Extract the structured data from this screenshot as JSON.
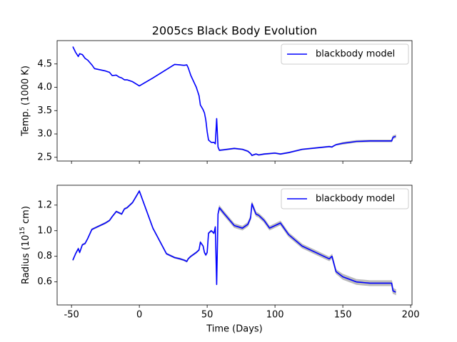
{
  "chart_data": [
    {
      "type": "line",
      "title": "2005cs Black Body Evolution",
      "ylabel": "Temp. (1000 K)",
      "x": [
        -49,
        -47,
        -45,
        -44,
        -42,
        -40,
        -38,
        -35,
        -33,
        -25,
        -22,
        -20,
        -17,
        -15,
        -13,
        -11,
        -9,
        -5,
        0,
        10,
        20,
        26,
        30,
        33,
        35,
        36,
        38,
        42,
        44,
        45,
        47,
        48,
        49,
        50,
        51,
        53,
        55,
        56,
        57,
        58,
        59,
        62,
        70,
        76,
        80,
        82,
        83,
        86,
        88,
        92,
        96,
        100,
        104,
        110,
        120,
        130,
        140,
        142,
        143,
        145,
        150,
        160,
        170,
        186,
        187,
        189
      ],
      "series": [
        {
          "name": "blackbody model",
          "color": "#0000ff",
          "band_color": "#bbbbbb",
          "values": [
            4.87,
            4.75,
            4.66,
            4.72,
            4.7,
            4.62,
            4.58,
            4.48,
            4.4,
            4.35,
            4.32,
            4.25,
            4.26,
            4.22,
            4.2,
            4.16,
            4.16,
            4.12,
            4.03,
            4.2,
            4.38,
            4.49,
            4.48,
            4.47,
            4.48,
            4.42,
            4.25,
            4.0,
            3.82,
            3.62,
            3.52,
            3.45,
            3.3,
            3.05,
            2.87,
            2.82,
            2.82,
            2.79,
            3.33,
            2.72,
            2.65,
            2.66,
            2.69,
            2.67,
            2.63,
            2.58,
            2.54,
            2.57,
            2.55,
            2.57,
            2.58,
            2.59,
            2.57,
            2.6,
            2.67,
            2.7,
            2.73,
            2.72,
            2.74,
            2.77,
            2.8,
            2.84,
            2.85,
            2.85,
            2.93,
            2.95
          ],
          "errors": [
            0.005,
            0.005,
            0.005,
            0.005,
            0.005,
            0.005,
            0.005,
            0.005,
            0.005,
            0.005,
            0.005,
            0.005,
            0.005,
            0.005,
            0.005,
            0.005,
            0.005,
            0.005,
            0.005,
            0.005,
            0.005,
            0.005,
            0.005,
            0.005,
            0.005,
            0.005,
            0.005,
            0.005,
            0.005,
            0.005,
            0.005,
            0.005,
            0.005,
            0.005,
            0.005,
            0.005,
            0.005,
            0.005,
            0.005,
            0.005,
            0.01,
            0.01,
            0.01,
            0.01,
            0.01,
            0.01,
            0.01,
            0.01,
            0.01,
            0.01,
            0.01,
            0.01,
            0.01,
            0.01,
            0.01,
            0.01,
            0.01,
            0.01,
            0.01,
            0.01,
            0.02,
            0.02,
            0.02,
            0.02,
            0.03,
            0.03
          ]
        }
      ],
      "xlim": [
        -60.6,
        201
      ],
      "xticks": [
        -50,
        0,
        50,
        100,
        150,
        200
      ],
      "show_xticklabels": false,
      "ylim": [
        2.42,
        5.0
      ],
      "yticks": [
        2.5,
        {
          "value": 3.0,
          "label": "3.0"
        },
        3.5,
        {
          "value": 4.0,
          "label": "4.0"
        },
        4.5
      ],
      "legend": "upper right"
    },
    {
      "type": "line",
      "xlabel": "Time (Days)",
      "ylabel_parts": [
        "Radius (10",
        "15",
        " cm)"
      ],
      "x": [
        -49,
        -47,
        -45,
        -44,
        -42,
        -40,
        -38,
        -35,
        -33,
        -25,
        -22,
        -20,
        -17,
        -15,
        -13,
        -11,
        -9,
        -5,
        0,
        10,
        20,
        26,
        30,
        33,
        35,
        36,
        38,
        42,
        44,
        45,
        47,
        48,
        49,
        50,
        51,
        53,
        55,
        56,
        57,
        58,
        59,
        62,
        70,
        76,
        80,
        82,
        83,
        86,
        88,
        92,
        96,
        100,
        104,
        110,
        120,
        130,
        140,
        142,
        143,
        145,
        150,
        160,
        170,
        186,
        187,
        189
      ],
      "series": [
        {
          "name": "blackbody model",
          "color": "#0000ff",
          "band_color": "#bbbbbb",
          "values": [
            0.77,
            0.82,
            0.86,
            0.83,
            0.89,
            0.9,
            0.94,
            1.01,
            1.02,
            1.06,
            1.08,
            1.11,
            1.15,
            1.14,
            1.13,
            1.17,
            1.18,
            1.22,
            1.31,
            1.02,
            0.82,
            0.79,
            0.78,
            0.77,
            0.76,
            0.78,
            0.8,
            0.83,
            0.85,
            0.91,
            0.88,
            0.83,
            0.81,
            0.83,
            0.98,
            1.0,
            0.98,
            1.03,
            0.58,
            1.13,
            1.18,
            1.14,
            1.04,
            1.02,
            1.05,
            1.1,
            1.21,
            1.13,
            1.12,
            1.08,
            1.02,
            1.04,
            1.06,
            0.97,
            0.88,
            0.83,
            0.78,
            0.8,
            0.76,
            0.68,
            0.64,
            0.6,
            0.59,
            0.59,
            0.53,
            0.52
          ],
          "errors": [
            0.005,
            0.005,
            0.005,
            0.005,
            0.005,
            0.005,
            0.005,
            0.005,
            0.005,
            0.005,
            0.005,
            0.005,
            0.005,
            0.005,
            0.005,
            0.005,
            0.005,
            0.005,
            0.005,
            0.005,
            0.005,
            0.005,
            0.005,
            0.005,
            0.005,
            0.005,
            0.005,
            0.005,
            0.005,
            0.005,
            0.005,
            0.005,
            0.005,
            0.005,
            0.005,
            0.005,
            0.005,
            0.005,
            0.005,
            0.005,
            0.015,
            0.015,
            0.015,
            0.015,
            0.015,
            0.015,
            0.015,
            0.015,
            0.015,
            0.015,
            0.015,
            0.015,
            0.015,
            0.015,
            0.015,
            0.015,
            0.015,
            0.015,
            0.015,
            0.015,
            0.02,
            0.02,
            0.02,
            0.02,
            0.02,
            0.02
          ]
        }
      ],
      "xlim": [
        -60.6,
        201
      ],
      "xticks": [
        -50,
        0,
        50,
        100,
        150,
        200
      ],
      "show_xticklabels": true,
      "ylim": [
        0.42,
        1.355
      ],
      "yticks": [
        0.6,
        0.8,
        {
          "value": 1.0,
          "label": "1.0"
        },
        1.2
      ],
      "legend": "upper right"
    }
  ]
}
